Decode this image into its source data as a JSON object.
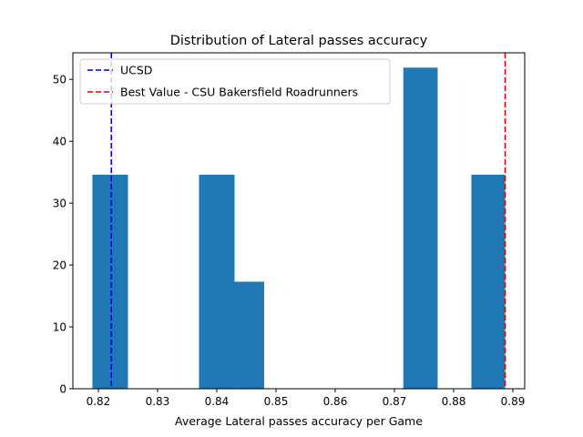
{
  "chart_data": {
    "type": "histogram",
    "title": "Distribution of Lateral passes accuracy",
    "xlabel": "Average Lateral passes accuracy per Game",
    "ylabel": "",
    "xlim": [
      0.8157,
      0.892
    ],
    "ylim": [
      0,
      54.3
    ],
    "xticks": [
      0.82,
      0.83,
      0.84,
      0.85,
      0.86,
      0.87,
      0.88,
      0.89
    ],
    "xtick_labels": [
      "0.82",
      "0.83",
      "0.84",
      "0.85",
      "0.86",
      "0.87",
      "0.88",
      "0.89"
    ],
    "yticks": [
      0,
      10,
      20,
      30,
      40,
      50
    ],
    "ytick_labels": [
      "0",
      "10",
      "20",
      "30",
      "40",
      "50"
    ],
    "bar_color": "#1f77b4",
    "bins": [
      {
        "x0": 0.819,
        "x1": 0.825,
        "value": 34.6
      },
      {
        "x0": 0.825,
        "x1": 0.831,
        "value": 0
      },
      {
        "x0": 0.831,
        "x1": 0.837,
        "value": 0
      },
      {
        "x0": 0.837,
        "x1": 0.843,
        "value": 34.6
      },
      {
        "x0": 0.843,
        "x1": 0.848,
        "value": 17.3
      },
      {
        "x0": 0.848,
        "x1": 0.854,
        "value": 0
      },
      {
        "x0": 0.854,
        "x1": 0.86,
        "value": 0
      },
      {
        "x0": 0.86,
        "x1": 0.866,
        "value": 0
      },
      {
        "x0": 0.866,
        "x1": 0.8715,
        "value": 0
      },
      {
        "x0": 0.8715,
        "x1": 0.8773,
        "value": 51.9
      },
      {
        "x0": 0.8773,
        "x1": 0.883,
        "value": 0
      },
      {
        "x0": 0.883,
        "x1": 0.8887,
        "value": 34.6
      }
    ],
    "reference_lines": [
      {
        "name": "UCSD",
        "x": 0.8222,
        "color": "#0000cc",
        "style": "dashed"
      },
      {
        "name": "Best Value - CSU Bakersfield Roadrunners",
        "x": 0.8887,
        "color": "#dd0000",
        "style": "dashed"
      }
    ],
    "legend_position": "top-left",
    "grid": false
  }
}
